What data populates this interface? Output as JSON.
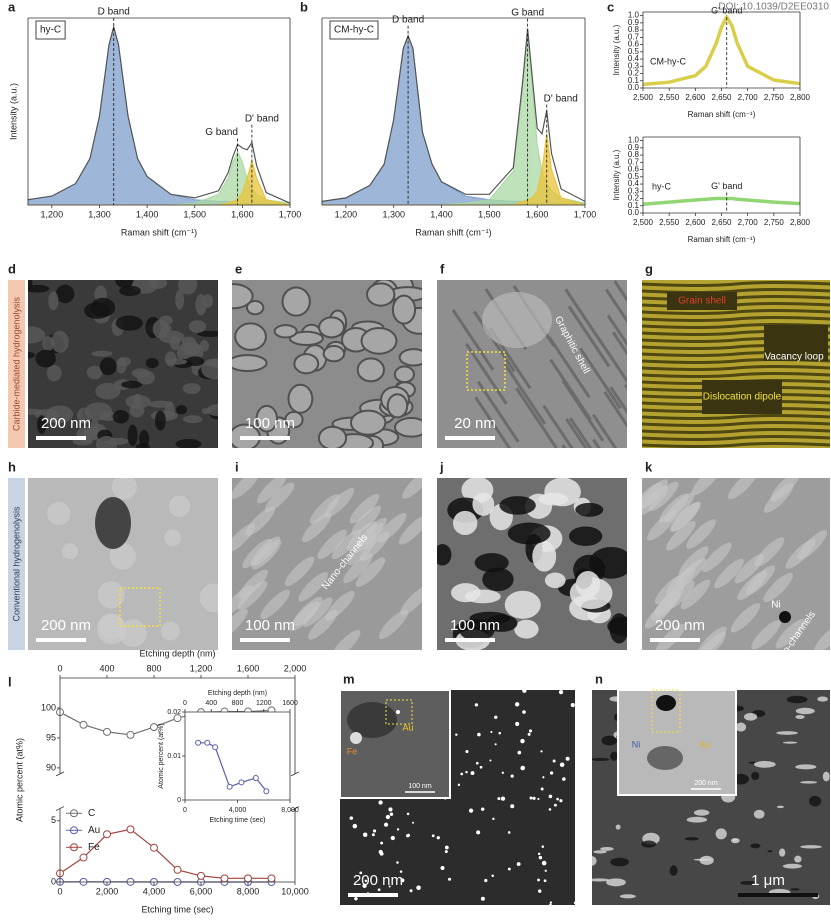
{
  "doi": "DOI: 10.1039/D2EE0310",
  "chart_data": [
    {
      "type": "line",
      "panel": "a",
      "tag": "hy-C",
      "ylabel": "Intensity (a.u.)",
      "xlabel": "Raman shift (cm⁻¹)",
      "xlim": [
        1150,
        1700
      ],
      "ylim": [
        0,
        1.05
      ],
      "xticks": [
        {
          "value": 1200,
          "label": "1,200"
        },
        {
          "value": 1300,
          "label": "1,300"
        },
        {
          "value": 1400,
          "label": "1,400"
        },
        {
          "value": 1500,
          "label": "1,500"
        },
        {
          "value": 1600,
          "label": "1,600"
        },
        {
          "value": 1700,
          "label": "1,700"
        }
      ],
      "x": [
        1150,
        1200,
        1250,
        1280,
        1300,
        1320,
        1330,
        1340,
        1360,
        1380,
        1400,
        1450,
        1500,
        1550,
        1570,
        1580,
        1590,
        1600,
        1610,
        1620,
        1630,
        1650,
        1700
      ],
      "series": [
        {
          "type": "area",
          "color": "#7d9fcc",
          "values": [
            0.03,
            0.05,
            0.12,
            0.26,
            0.5,
            0.9,
            1.0,
            0.9,
            0.5,
            0.26,
            0.16,
            0.06,
            0.03,
            0.02,
            0.02,
            0.01,
            0.01,
            0.01,
            0.01,
            0.01,
            0.01,
            0.01,
            0
          ]
        },
        {
          "type": "area",
          "color": "#a9d8a3",
          "values": [
            0,
            0,
            0,
            0,
            0,
            0,
            0,
            0,
            0,
            0,
            0,
            0,
            0.01,
            0.06,
            0.15,
            0.24,
            0.3,
            0.24,
            0.15,
            0.09,
            0.06,
            0.03,
            0.01
          ]
        },
        {
          "type": "area",
          "color": "#e9c338",
          "values": [
            0,
            0,
            0,
            0,
            0,
            0,
            0,
            0,
            0,
            0,
            0,
            0,
            0,
            0,
            0.01,
            0.02,
            0.03,
            0.07,
            0.15,
            0.25,
            0.15,
            0.03,
            0
          ]
        },
        {
          "color": "#555555",
          "values": [
            0.03,
            0.05,
            0.12,
            0.26,
            0.5,
            0.9,
            1.0,
            0.9,
            0.5,
            0.26,
            0.16,
            0.06,
            0.04,
            0.08,
            0.18,
            0.27,
            0.34,
            0.32,
            0.31,
            0.35,
            0.22,
            0.07,
            0.01
          ]
        }
      ],
      "annotations": [
        {
          "text": "D band",
          "x": 1330
        },
        {
          "text": "G band",
          "x": 1590
        },
        {
          "text": "D' band",
          "x": 1620
        }
      ]
    },
    {
      "type": "line",
      "panel": "b",
      "tag": "CM-hy-C",
      "xlabel": "Raman shift (cm⁻¹)",
      "xlim": [
        1150,
        1700
      ],
      "ylim": [
        0,
        1.05
      ],
      "xticks": [
        {
          "value": 1200,
          "label": "1,200"
        },
        {
          "value": 1300,
          "label": "1,300"
        },
        {
          "value": 1400,
          "label": "1,400"
        },
        {
          "value": 1500,
          "label": "1,500"
        },
        {
          "value": 1600,
          "label": "1,600"
        },
        {
          "value": 1700,
          "label": "1,700"
        }
      ],
      "x": [
        1150,
        1200,
        1250,
        1280,
        1300,
        1320,
        1330,
        1340,
        1360,
        1380,
        1400,
        1450,
        1500,
        1550,
        1570,
        1580,
        1590,
        1600,
        1610,
        1620,
        1630,
        1650,
        1700
      ],
      "series": [
        {
          "type": "area",
          "color": "#7d9fcc",
          "values": [
            0.02,
            0.04,
            0.11,
            0.23,
            0.48,
            0.88,
            0.95,
            0.88,
            0.41,
            0.23,
            0.13,
            0.05,
            0.03,
            0.02,
            0.02,
            0.01,
            0.01,
            0.01,
            0.01,
            0.01,
            0.01,
            0.01,
            0.01
          ]
        },
        {
          "type": "area",
          "color": "#a9d8a3",
          "values": [
            0,
            0,
            0,
            0,
            0,
            0,
            0,
            0,
            0,
            0,
            0,
            0.01,
            0.03,
            0.19,
            0.66,
            0.95,
            0.66,
            0.34,
            0.19,
            0.12,
            0.08,
            0.04,
            0.01
          ]
        },
        {
          "type": "area",
          "color": "#e9c338",
          "values": [
            0,
            0,
            0,
            0,
            0,
            0,
            0,
            0,
            0,
            0,
            0,
            0,
            0,
            0,
            0.02,
            0.03,
            0.04,
            0.08,
            0.2,
            0.4,
            0.2,
            0.04,
            0
          ]
        },
        {
          "color": "#555555",
          "values": [
            0.02,
            0.04,
            0.11,
            0.23,
            0.48,
            0.88,
            0.95,
            0.88,
            0.41,
            0.23,
            0.13,
            0.06,
            0.06,
            0.21,
            0.7,
            0.99,
            0.71,
            0.43,
            0.4,
            0.53,
            0.29,
            0.09,
            0.02
          ]
        }
      ],
      "annotations": [
        {
          "text": "D band",
          "x": 1330
        },
        {
          "text": "G band",
          "x": 1580
        },
        {
          "text": "D' band",
          "x": 1620
        }
      ]
    },
    {
      "type": "line",
      "panel": "c",
      "tag": "CM-hy-C",
      "ylabel": "Intensity (a.u.)",
      "xlabel": "Raman shift (cm⁻¹)",
      "xlim": [
        2500,
        2800
      ],
      "ylim": [
        0,
        1.05
      ],
      "xticks": [
        {
          "value": 2500,
          "label": "2,500"
        },
        {
          "value": 2550,
          "label": "2,550"
        },
        {
          "value": 2600,
          "label": "2,600"
        },
        {
          "value": 2650,
          "label": "2,650"
        },
        {
          "value": 2700,
          "label": "2,700"
        },
        {
          "value": 2750,
          "label": "2,750"
        },
        {
          "value": 2800,
          "label": "2,800"
        }
      ],
      "yticks": [
        {
          "value": 0,
          "label": "0.0"
        },
        0.1,
        0.2,
        0.3,
        0.4,
        0.5,
        0.6,
        0.7,
        0.8,
        0.9,
        {
          "value": 1,
          "label": "1.0"
        }
      ],
      "x": [
        2500,
        2550,
        2600,
        2620,
        2640,
        2650,
        2660,
        2670,
        2680,
        2700,
        2750,
        2800
      ],
      "series": [
        {
          "color": "#d2c62a",
          "values": [
            0.05,
            0.08,
            0.17,
            0.3,
            0.62,
            0.84,
            0.98,
            0.86,
            0.62,
            0.3,
            0.11,
            0.06
          ]
        }
      ],
      "annotations": [
        {
          "text": "G' band",
          "x": 2660
        }
      ]
    },
    {
      "type": "line",
      "tag": "hy-C",
      "ylabel": "Intensity (a.u.)",
      "xlabel": "Raman shift (cm⁻¹)",
      "xlim": [
        2500,
        2800
      ],
      "ylim": [
        0,
        1.05
      ],
      "xticks": [
        {
          "value": 2500,
          "label": "2,500"
        },
        {
          "value": 2550,
          "label": "2,550"
        },
        {
          "value": 2600,
          "label": "2,600"
        },
        {
          "value": 2650,
          "label": "2,650"
        },
        {
          "value": 2700,
          "label": "2,700"
        },
        {
          "value": 2750,
          "label": "2,750"
        },
        {
          "value": 2800,
          "label": "2,800"
        }
      ],
      "yticks": [
        {
          "value": 0,
          "label": "0.0"
        },
        0.1,
        0.2,
        0.3,
        0.4,
        0.5,
        0.6,
        0.7,
        0.8,
        0.9,
        {
          "value": 1,
          "label": "1.0"
        }
      ],
      "x": [
        2500,
        2550,
        2600,
        2620,
        2640,
        2650,
        2660,
        2670,
        2680,
        2700,
        2750,
        2800
      ],
      "series": [
        {
          "color": "#7fcf5a",
          "values": [
            0.12,
            0.15,
            0.18,
            0.19,
            0.2,
            0.2,
            0.2,
            0.2,
            0.19,
            0.18,
            0.15,
            0.13
          ]
        }
      ],
      "annotations": [
        {
          "text": "G' band",
          "x": 2660
        }
      ]
    },
    {
      "type": "line",
      "panel": "l",
      "xlabel": "Etching time (sec)",
      "x2label": "Etching depth (nm)",
      "ylabel": "Atomic percent (at%)",
      "xlim": [
        0,
        10000
      ],
      "x2lim": [
        0,
        2000
      ],
      "ylim": [
        0,
        105
      ],
      "ybreak": [
        6,
        89
      ],
      "xticks": [
        0,
        {
          "value": 2000,
          "label": "2,000"
        },
        {
          "value": 4000,
          "label": "4,000"
        },
        {
          "value": 6000,
          "label": "6,000"
        },
        {
          "value": 8000,
          "label": "8,000"
        },
        {
          "value": 10000,
          "label": "10,000"
        }
      ],
      "x2ticks": [
        0,
        400,
        800,
        {
          "value": 1200,
          "label": "1,200"
        },
        {
          "value": 1600,
          "label": "1,600"
        },
        {
          "value": 2000,
          "label": "2,000"
        }
      ],
      "yticks": [
        0,
        5,
        90,
        95,
        100
      ],
      "markers": true,
      "legend": "left",
      "x": [
        0,
        1000,
        2000,
        3000,
        4000,
        5000,
        6000,
        7000,
        8000,
        9000
      ],
      "series": [
        {
          "name": "C",
          "color": "#707070",
          "values": [
            99.3,
            97.2,
            96,
            95.5,
            96.8,
            98.3,
            99.3,
            99.4,
            99.4,
            99.6
          ]
        },
        {
          "name": "Au",
          "color": "#5b5fa8",
          "values": [
            0.012,
            0.013,
            0.013,
            0.012,
            0.004,
            0.005,
            0.004,
            0.002,
            0.001,
            0.001
          ]
        },
        {
          "name": "Fe",
          "color": "#a4443f",
          "values": [
            0.7,
            2,
            3.9,
            4.3,
            2.8,
            1,
            0.5,
            0.3,
            0.3,
            0.3
          ]
        }
      ]
    },
    {
      "type": "line",
      "xlabel": "Etching time (sec)",
      "x2label": "Etching depth (nm)",
      "ylabel": "Atomic percent (at%)",
      "xlim": [
        0,
        8000
      ],
      "x2lim": [
        0,
        1600
      ],
      "ylim": [
        0,
        0.02
      ],
      "xticks": [
        0,
        {
          "value": 4000,
          "label": "4,000"
        },
        {
          "value": 8000,
          "label": "8,000"
        }
      ],
      "x2ticks": [
        0,
        400,
        800,
        1200,
        1600
      ],
      "yticks": [
        0,
        0.01,
        0.02
      ],
      "markers": true,
      "x": [
        1000,
        1700,
        2300,
        3400,
        4300,
        5400,
        6200
      ],
      "series": [
        {
          "color": "#5b5fa8",
          "values": [
            0.013,
            0.013,
            0.012,
            0.003,
            0.004,
            0.005,
            0.002
          ]
        }
      ]
    }
  ],
  "figure": {
    "side_labels": [
      "Carbide-mediated hydrogenolysis",
      "Conventional hydrogenolysis"
    ],
    "panels": [
      {
        "label": "d",
        "scale_bar": "200 nm"
      },
      {
        "label": "e",
        "scale_bar": "100 nm"
      },
      {
        "label": "f",
        "scale_bar": "20 nm",
        "notes": [
          "Graphitic shell"
        ]
      },
      {
        "label": "g",
        "notes": [
          "Grain shell",
          "Vacancy loop",
          "Dislocation dipole"
        ]
      },
      {
        "label": "h",
        "scale_bar": "200 nm"
      },
      {
        "label": "i",
        "scale_bar": "100 nm",
        "notes": [
          "Nano-channels"
        ]
      },
      {
        "label": "j",
        "scale_bar": "100 nm"
      },
      {
        "label": "k",
        "scale_bar": "200 nm",
        "notes": [
          "Ni",
          "Nano-channels"
        ]
      },
      {
        "label": "m",
        "scale_bar": "200 nm",
        "inset": {
          "notes": [
            "Au",
            "Fe"
          ],
          "scale_bar": "100 nm"
        }
      },
      {
        "label": "n",
        "scale_bar": "1 μm",
        "inset": {
          "notes": [
            "Ni",
            "Au"
          ],
          "scale_bar": "200 nm"
        }
      }
    ]
  }
}
